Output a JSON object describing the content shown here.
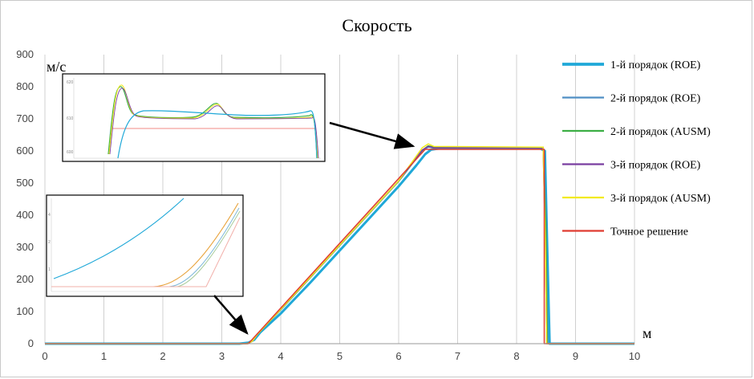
{
  "chart_data": {
    "type": "line",
    "title": "Скорость",
    "ylabel": "м/с",
    "xlabel": "м",
    "xlim": [
      0,
      10
    ],
    "ylim": [
      0,
      900
    ],
    "x_ticks": [
      "0",
      "1",
      "2",
      "3",
      "4",
      "5",
      "6",
      "7",
      "8",
      "9",
      "10"
    ],
    "y_ticks": [
      "0",
      "100",
      "200",
      "300",
      "400",
      "500",
      "600",
      "700",
      "800",
      "900"
    ],
    "grid": "vertical",
    "legend_position": "right",
    "series": [
      {
        "name": "1-й порядок (ROE)",
        "color": "#1fa8d8",
        "width": 3,
        "points": [
          [
            0,
            0
          ],
          [
            3.3,
            0
          ],
          [
            3.45,
            3
          ],
          [
            3.55,
            12
          ],
          [
            3.65,
            35
          ],
          [
            4.0,
            94
          ],
          [
            4.5,
            190
          ],
          [
            5.0,
            290
          ],
          [
            5.5,
            390
          ],
          [
            6.0,
            490
          ],
          [
            6.3,
            555
          ],
          [
            6.45,
            590
          ],
          [
            6.55,
            604
          ],
          [
            6.7,
            608
          ],
          [
            8.4,
            608
          ],
          [
            8.48,
            600
          ],
          [
            8.52,
            300
          ],
          [
            8.56,
            0
          ],
          [
            10,
            0
          ]
        ]
      },
      {
        "name": "2-й порядок (ROE)",
        "color": "#4f8fc4",
        "width": 1.5,
        "points": [
          [
            0,
            0
          ],
          [
            3.4,
            0
          ],
          [
            3.5,
            8
          ],
          [
            3.6,
            30
          ],
          [
            4.0,
            105
          ],
          [
            4.5,
            205
          ],
          [
            5.0,
            305
          ],
          [
            5.5,
            405
          ],
          [
            6.0,
            505
          ],
          [
            6.4,
            600
          ],
          [
            6.5,
            612
          ],
          [
            6.6,
            610
          ],
          [
            8.45,
            610
          ],
          [
            8.5,
            400
          ],
          [
            8.53,
            0
          ],
          [
            10,
            0
          ]
        ]
      },
      {
        "name": "2-й порядок (AUSM)",
        "color": "#3cae45",
        "width": 1.5,
        "points": [
          [
            0,
            0
          ],
          [
            3.42,
            0
          ],
          [
            3.5,
            6
          ],
          [
            3.6,
            28
          ],
          [
            4.0,
            106
          ],
          [
            4.5,
            206
          ],
          [
            5.0,
            306
          ],
          [
            5.5,
            406
          ],
          [
            6.0,
            506
          ],
          [
            6.4,
            602
          ],
          [
            6.5,
            616
          ],
          [
            6.6,
            612
          ],
          [
            8.45,
            612
          ],
          [
            8.5,
            350
          ],
          [
            8.52,
            0
          ],
          [
            10,
            0
          ]
        ]
      },
      {
        "name": "3-й порядок (ROE)",
        "color": "#7a3ea0",
        "width": 1.5,
        "points": [
          [
            0,
            0
          ],
          [
            3.44,
            0
          ],
          [
            3.52,
            8
          ],
          [
            3.6,
            28
          ],
          [
            4.0,
            107
          ],
          [
            4.5,
            207
          ],
          [
            5.0,
            307
          ],
          [
            5.5,
            407
          ],
          [
            6.0,
            507
          ],
          [
            6.4,
            603
          ],
          [
            6.5,
            614
          ],
          [
            6.6,
            610
          ],
          [
            8.45,
            610
          ],
          [
            8.49,
            300
          ],
          [
            8.51,
            0
          ],
          [
            10,
            0
          ]
        ]
      },
      {
        "name": "3-й порядок (AUSM)",
        "color": "#f2ea1c",
        "width": 1.5,
        "points": [
          [
            0,
            0
          ],
          [
            3.44,
            0
          ],
          [
            3.52,
            8
          ],
          [
            3.6,
            28
          ],
          [
            4.0,
            107
          ],
          [
            4.5,
            207
          ],
          [
            5.0,
            307
          ],
          [
            5.5,
            407
          ],
          [
            6.0,
            507
          ],
          [
            6.4,
            610
          ],
          [
            6.5,
            622
          ],
          [
            6.6,
            614
          ],
          [
            8.45,
            612
          ],
          [
            8.49,
            300
          ],
          [
            8.51,
            0
          ],
          [
            10,
            0
          ]
        ]
      },
      {
        "name": "Точное решение",
        "color": "#e03c31",
        "width": 1.5,
        "points": [
          [
            0,
            0
          ],
          [
            3.45,
            0
          ],
          [
            6.45,
            605
          ],
          [
            8.47,
            605
          ],
          [
            8.47,
            0
          ],
          [
            10,
            0
          ]
        ]
      }
    ]
  }
}
